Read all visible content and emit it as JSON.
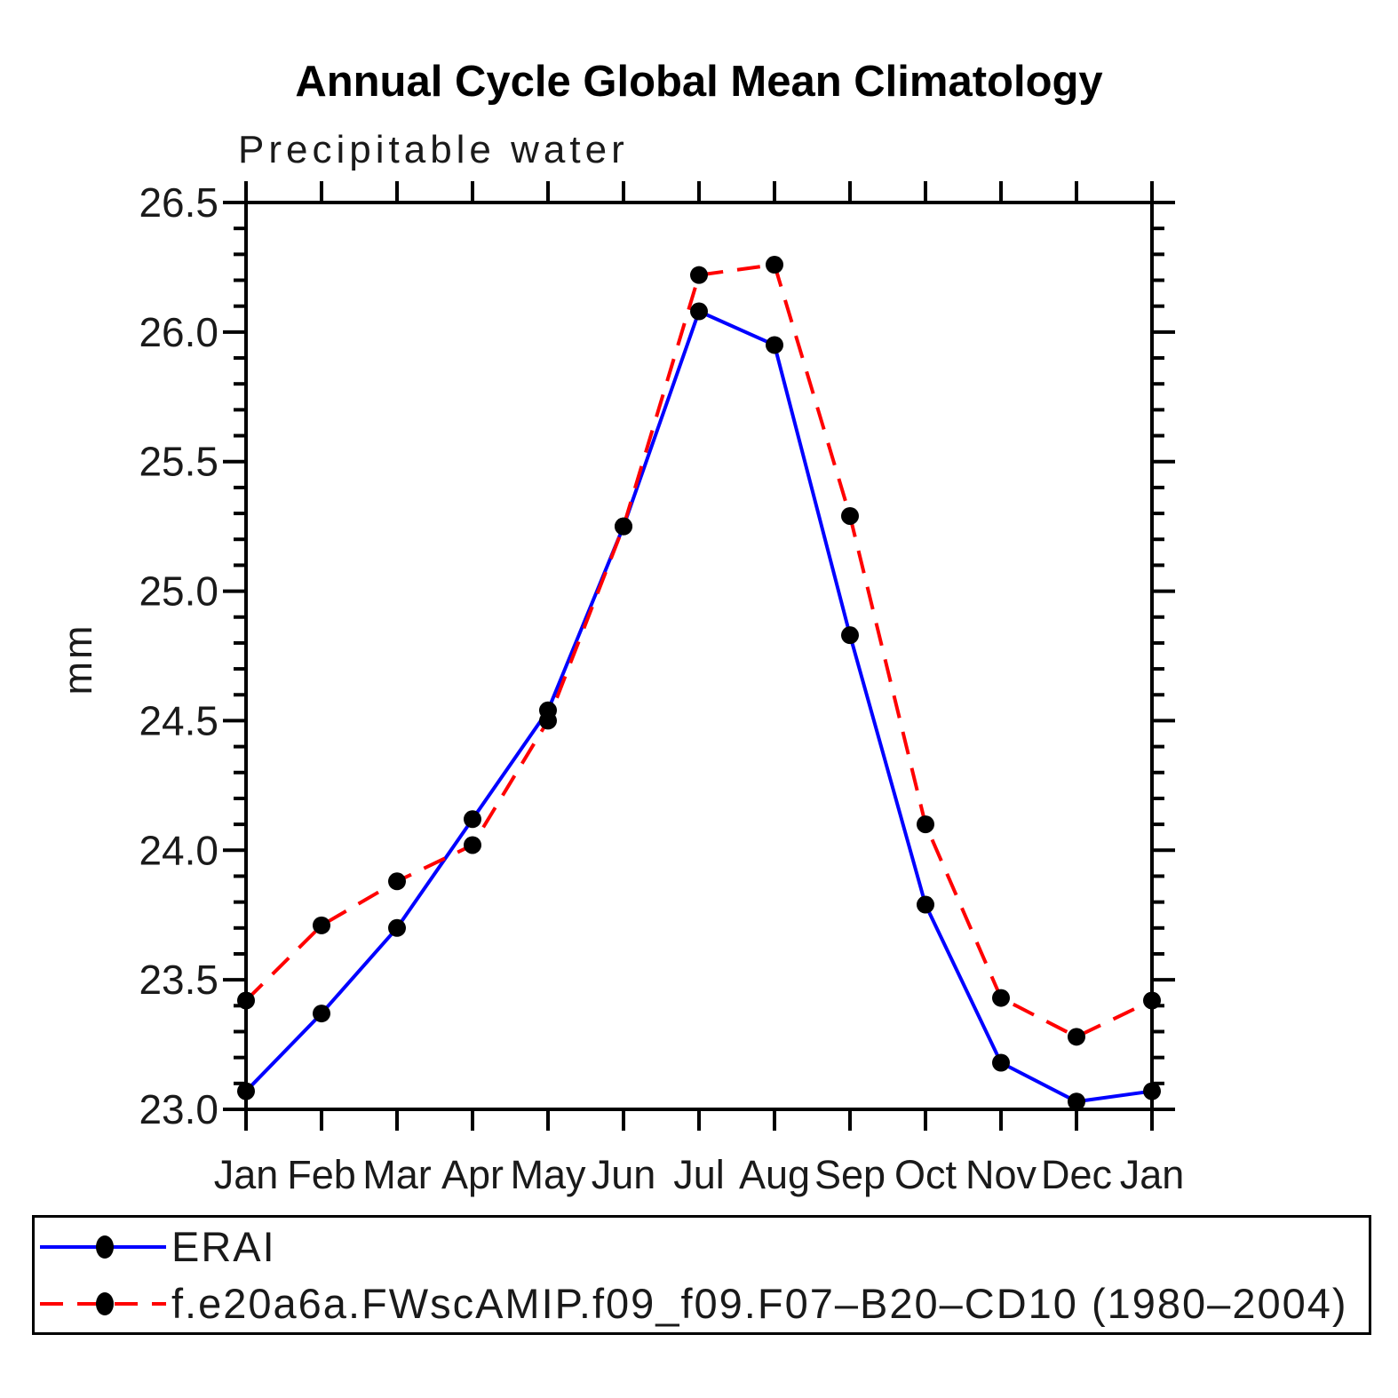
{
  "chart_data": {
    "type": "line",
    "title": "Annual Cycle Global Mean Climatology",
    "subtitle": "Precipitable water",
    "xlabel": "",
    "ylabel": "mm",
    "categories": [
      "Jan",
      "Feb",
      "Mar",
      "Apr",
      "May",
      "Jun",
      "Jul",
      "Aug",
      "Sep",
      "Oct",
      "Nov",
      "Dec",
      "Jan"
    ],
    "ylim": [
      23.0,
      26.5
    ],
    "y_major_step": 0.5,
    "y_minor_step": 0.1,
    "y_tick_labels": [
      "23.0",
      "23.5",
      "24.0",
      "24.5",
      "25.0",
      "25.5",
      "26.0",
      "26.5"
    ],
    "grid": false,
    "legend_position": "bottom",
    "axis_color": "#000000",
    "marker_color": "#000000",
    "series": [
      {
        "name": "ERAI",
        "color": "#0000ff",
        "style": "solid",
        "marker": "circle",
        "values": [
          23.07,
          23.37,
          23.7,
          24.12,
          24.54,
          25.25,
          26.08,
          25.95,
          24.83,
          23.79,
          23.18,
          23.03,
          23.07
        ]
      },
      {
        "name": "f.e20a6a.FWscAMIP.f09_f09.F07–B20–CD10 (1980–2004)",
        "color": "#ff0000",
        "style": "dashed",
        "marker": "circle",
        "values": [
          23.42,
          23.71,
          23.88,
          24.02,
          24.5,
          25.25,
          26.22,
          26.26,
          25.29,
          24.1,
          23.43,
          23.28,
          23.42
        ]
      }
    ]
  }
}
